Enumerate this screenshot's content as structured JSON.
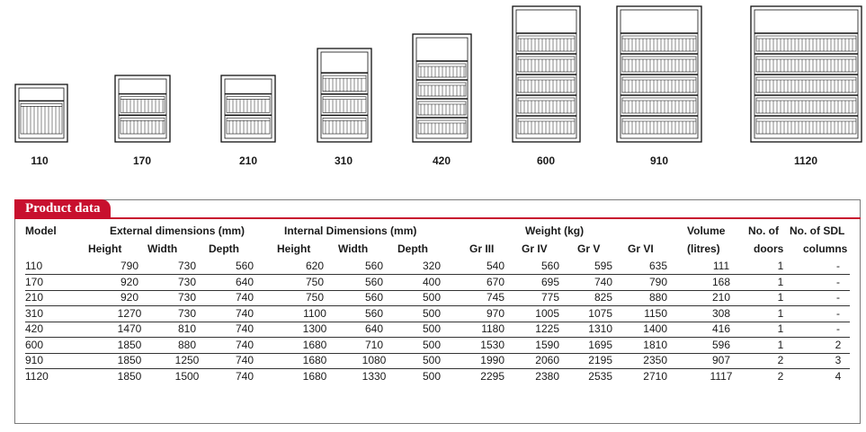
{
  "models_row": [
    "110",
    "170",
    "210",
    "310",
    "420",
    "600",
    "910",
    "1120"
  ],
  "section_title": "Product data",
  "headers": {
    "model": "Model",
    "external": "External dimensions (mm)",
    "internal": "Internal Dimensions (mm)",
    "weight": "Weight (kg)",
    "volume": "Volume",
    "volume_unit": "(litres)",
    "doors": "No. of",
    "doors2": "doors",
    "columns": "No. of SDL",
    "columns2": "columns",
    "ext_height": "Height",
    "ext_width": "Width",
    "ext_depth": "Depth",
    "int_height": "Height",
    "int_width": "Width",
    "int_depth": "Depth",
    "gr3": "Gr III",
    "gr4": "Gr IV",
    "gr5": "Gr V",
    "gr6": "Gr VI"
  },
  "rows": [
    [
      "110",
      "790",
      "730",
      "560",
      "620",
      "560",
      "320",
      "540",
      "560",
      "595",
      "635",
      "111",
      "1",
      "-"
    ],
    [
      "170",
      "920",
      "730",
      "640",
      "750",
      "560",
      "400",
      "670",
      "695",
      "740",
      "790",
      "168",
      "1",
      "-"
    ],
    [
      "210",
      "920",
      "730",
      "740",
      "750",
      "560",
      "500",
      "745",
      "775",
      "825",
      "880",
      "210",
      "1",
      "-"
    ],
    [
      "310",
      "1270",
      "730",
      "740",
      "1100",
      "560",
      "500",
      "970",
      "1005",
      "1075",
      "1150",
      "308",
      "1",
      "-"
    ],
    [
      "420",
      "1470",
      "810",
      "740",
      "1300",
      "640",
      "500",
      "1180",
      "1225",
      "1310",
      "1400",
      "416",
      "1",
      "-"
    ],
    [
      "600",
      "1850",
      "880",
      "740",
      "1680",
      "710",
      "500",
      "1530",
      "1590",
      "1695",
      "1810",
      "596",
      "1",
      "2"
    ],
    [
      "910",
      "1850",
      "1250",
      "740",
      "1680",
      "1080",
      "500",
      "1990",
      "2060",
      "2195",
      "2350",
      "907",
      "2",
      "3"
    ],
    [
      "1120",
      "1850",
      "1500",
      "740",
      "1680",
      "1330",
      "500",
      "2295",
      "2380",
      "2535",
      "2710",
      "1117",
      "2",
      "4"
    ]
  ]
}
